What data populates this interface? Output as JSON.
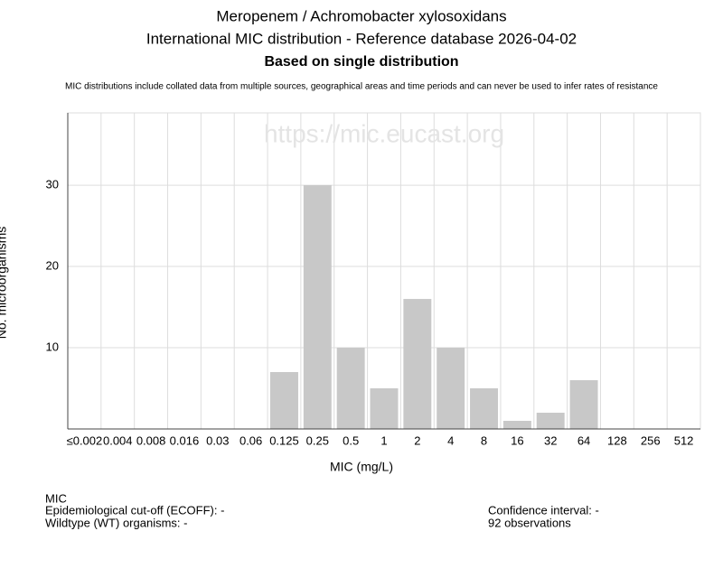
{
  "chart_data": {
    "type": "bar",
    "title_lines": [
      "Meropenem / Achromobacter xylosoxidans",
      "International MIC distribution - Reference database 2026-04-02",
      "Based on single distribution"
    ],
    "note": "MIC distributions include collated data from multiple sources, geographical areas and time periods and can never be used to infer rates of resistance",
    "watermark": "https://mic.eucast.org",
    "x_label": "MIC (mg/L)",
    "y_label": "No. microorganisms",
    "categories": [
      "≤0.002",
      "0.004",
      "0.008",
      "0.016",
      "0.03",
      "0.06",
      "0.125",
      "0.25",
      "0.5",
      "1",
      "2",
      "4",
      "8",
      "16",
      "32",
      "64",
      "128",
      "256",
      "512"
    ],
    "values": [
      0,
      0,
      0,
      0,
      0,
      0,
      7,
      30,
      10,
      5,
      16,
      10,
      5,
      1,
      2,
      6,
      0,
      0,
      0
    ],
    "color": "#c8c8c8",
    "ylim": [
      0,
      38.9
    ],
    "yticks": [
      10,
      20,
      30
    ],
    "grid": true,
    "footer_left": [
      "MIC",
      "Epidemiological cut-off (ECOFF): -",
      "Wildtype (WT) organisms:  -"
    ],
    "footer_right": [
      "Confidence interval: -",
      "92 observations"
    ]
  }
}
